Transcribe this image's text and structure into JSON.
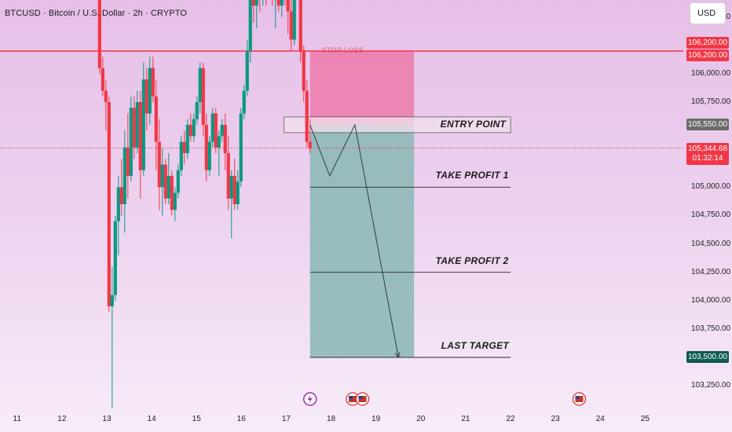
{
  "header": {
    "symbol": "BTCUSD · Bitcoin / U.S. Dollar · 2h · CRYPTO",
    "currency_button": "USD"
  },
  "price_axis": {
    "ticks": [
      "106,500.00",
      "106,000.00",
      "105,750.00",
      "105,000.00",
      "104,750.00",
      "104,500.00",
      "104,250.00",
      "104,000.00",
      "103,750.00",
      "103,250.00"
    ],
    "labels": {
      "stop_loss_price": "106,200.00",
      "entry_price": "105,550.00",
      "current_price": "105,344.68",
      "countdown": "01:32:14",
      "target_price": "103,500.00"
    }
  },
  "time_axis": {
    "ticks": [
      "11",
      "12",
      "13",
      "14",
      "15",
      "16",
      "17",
      "18",
      "19",
      "20",
      "21",
      "22",
      "23",
      "24",
      "25"
    ]
  },
  "annotations": {
    "stop_loss": "STOP LOSS",
    "entry_point": "ENTRY POINT",
    "take_profit_1": "TAKE PROFIT 1",
    "take_profit_2": "TAKE PROFIT 2",
    "last_target": "LAST TARGET"
  },
  "colors": {
    "up": "#089981",
    "down": "#f23645",
    "stop_zone": "#ec7aac",
    "profit_zone": "#8fb9b8",
    "accent_line": "#f23645",
    "target_badge": "#0b5b50",
    "entry_badge": "#6b6b6b"
  },
  "chart_data": {
    "type": "candlestick",
    "interval": "2h",
    "ylim": [
      103050,
      106650
    ],
    "x_range": [
      10.62,
      25.85
    ],
    "stop_loss": 106200,
    "entry": 105550,
    "take_profit_1": 105000,
    "take_profit_2": 104250,
    "last_target": 103500,
    "current_price": 105344.68,
    "position": {
      "x_start": 17.53,
      "x_end": 19.85
    },
    "projection": [
      [
        17.53,
        105550
      ],
      [
        17.97,
        105100
      ],
      [
        18.53,
        105550
      ],
      [
        19.5,
        103500
      ]
    ],
    "event_icons": [
      17.53,
      18.48,
      18.7,
      23.53
    ],
    "candles": [
      {
        "x": 12.84,
        "o": 106900,
        "h": 107000,
        "l": 106000,
        "c": 106050
      },
      {
        "x": 12.91,
        "o": 106050,
        "h": 106150,
        "l": 105800,
        "c": 105850
      },
      {
        "x": 12.98,
        "o": 105850,
        "h": 105950,
        "l": 105500,
        "c": 105750
      },
      {
        "x": 13.05,
        "o": 105750,
        "h": 105800,
        "l": 103900,
        "c": 103950
      },
      {
        "x": 13.12,
        "o": 103950,
        "h": 104300,
        "l": 103050,
        "c": 104050
      },
      {
        "x": 13.19,
        "o": 104050,
        "h": 104750,
        "l": 104000,
        "c": 104700
      },
      {
        "x": 13.26,
        "o": 104700,
        "h": 105100,
        "l": 104400,
        "c": 105000
      },
      {
        "x": 13.33,
        "o": 105000,
        "h": 105250,
        "l": 104750,
        "c": 104850
      },
      {
        "x": 13.4,
        "o": 104850,
        "h": 105500,
        "l": 104600,
        "c": 105350
      },
      {
        "x": 13.47,
        "o": 105350,
        "h": 105650,
        "l": 104900,
        "c": 105100
      },
      {
        "x": 13.54,
        "o": 105100,
        "h": 105800,
        "l": 105050,
        "c": 105700
      },
      {
        "x": 13.61,
        "o": 105700,
        "h": 105800,
        "l": 105250,
        "c": 105350
      },
      {
        "x": 13.68,
        "o": 105350,
        "h": 105850,
        "l": 105300,
        "c": 105750
      },
      {
        "x": 13.75,
        "o": 105750,
        "h": 105850,
        "l": 104900,
        "c": 105150
      },
      {
        "x": 13.82,
        "o": 105150,
        "h": 106100,
        "l": 105100,
        "c": 105950
      },
      {
        "x": 13.89,
        "o": 105950,
        "h": 106050,
        "l": 105500,
        "c": 105650
      },
      {
        "x": 13.96,
        "o": 105650,
        "h": 106150,
        "l": 105550,
        "c": 106050
      },
      {
        "x": 14.03,
        "o": 106050,
        "h": 106150,
        "l": 105750,
        "c": 105800
      },
      {
        "x": 14.1,
        "o": 105800,
        "h": 105950,
        "l": 105150,
        "c": 105400
      },
      {
        "x": 14.17,
        "o": 105400,
        "h": 105600,
        "l": 104800,
        "c": 105000
      },
      {
        "x": 14.24,
        "o": 105000,
        "h": 105350,
        "l": 104750,
        "c": 105200
      },
      {
        "x": 14.31,
        "o": 105200,
        "h": 105250,
        "l": 104850,
        "c": 104900
      },
      {
        "x": 14.38,
        "o": 104900,
        "h": 105300,
        "l": 104850,
        "c": 105100
      },
      {
        "x": 14.45,
        "o": 105100,
        "h": 105150,
        "l": 104750,
        "c": 104800
      },
      {
        "x": 14.52,
        "o": 104800,
        "h": 105000,
        "l": 104700,
        "c": 104950
      },
      {
        "x": 14.59,
        "o": 104950,
        "h": 105200,
        "l": 104900,
        "c": 105150
      },
      {
        "x": 14.66,
        "o": 105150,
        "h": 105450,
        "l": 105100,
        "c": 105400
      },
      {
        "x": 14.73,
        "o": 105400,
        "h": 105500,
        "l": 105200,
        "c": 105300
      },
      {
        "x": 14.8,
        "o": 105300,
        "h": 105600,
        "l": 105250,
        "c": 105550
      },
      {
        "x": 14.87,
        "o": 105550,
        "h": 105650,
        "l": 105400,
        "c": 105450
      },
      {
        "x": 14.94,
        "o": 105450,
        "h": 105650,
        "l": 105400,
        "c": 105600
      },
      {
        "x": 15.01,
        "o": 105600,
        "h": 105800,
        "l": 105550,
        "c": 105750
      },
      {
        "x": 15.08,
        "o": 105750,
        "h": 106100,
        "l": 105650,
        "c": 106050
      },
      {
        "x": 15.15,
        "o": 106050,
        "h": 106100,
        "l": 105450,
        "c": 105550
      },
      {
        "x": 15.22,
        "o": 105550,
        "h": 105650,
        "l": 105050,
        "c": 105150
      },
      {
        "x": 15.29,
        "o": 105150,
        "h": 105450,
        "l": 105100,
        "c": 105400
      },
      {
        "x": 15.36,
        "o": 105400,
        "h": 105700,
        "l": 105350,
        "c": 105650
      },
      {
        "x": 15.43,
        "o": 105650,
        "h": 105700,
        "l": 105300,
        "c": 105350
      },
      {
        "x": 15.5,
        "o": 105350,
        "h": 105500,
        "l": 105100,
        "c": 105450
      },
      {
        "x": 15.57,
        "o": 105450,
        "h": 105600,
        "l": 105400,
        "c": 105550
      },
      {
        "x": 15.64,
        "o": 105550,
        "h": 105650,
        "l": 105150,
        "c": 105300
      },
      {
        "x": 15.71,
        "o": 105300,
        "h": 105450,
        "l": 104800,
        "c": 104900
      },
      {
        "x": 15.78,
        "o": 104900,
        "h": 105150,
        "l": 104550,
        "c": 105100
      },
      {
        "x": 15.85,
        "o": 105100,
        "h": 105250,
        "l": 104800,
        "c": 104850
      },
      {
        "x": 15.92,
        "o": 104850,
        "h": 105150,
        "l": 104800,
        "c": 105050
      },
      {
        "x": 15.99,
        "o": 105050,
        "h": 105700,
        "l": 105000,
        "c": 105650
      },
      {
        "x": 16.06,
        "o": 105650,
        "h": 105900,
        "l": 105600,
        "c": 105850
      },
      {
        "x": 16.13,
        "o": 105850,
        "h": 106300,
        "l": 105800,
        "c": 106200
      },
      {
        "x": 16.2,
        "o": 106200,
        "h": 106800,
        "l": 106100,
        "c": 106700
      },
      {
        "x": 16.27,
        "o": 106700,
        "h": 106900,
        "l": 106450,
        "c": 106600
      },
      {
        "x": 16.34,
        "o": 106600,
        "h": 106900,
        "l": 106400,
        "c": 106850
      },
      {
        "x": 16.41,
        "o": 106850,
        "h": 106950,
        "l": 106550,
        "c": 106650
      },
      {
        "x": 16.48,
        "o": 106650,
        "h": 106900,
        "l": 106600,
        "c": 106800
      },
      {
        "x": 16.55,
        "o": 106800,
        "h": 106950,
        "l": 106600,
        "c": 106700
      },
      {
        "x": 16.62,
        "o": 106700,
        "h": 106950,
        "l": 106650,
        "c": 106850
      },
      {
        "x": 16.69,
        "o": 106850,
        "h": 106950,
        "l": 106600,
        "c": 106650
      },
      {
        "x": 16.76,
        "o": 106650,
        "h": 106900,
        "l": 106400,
        "c": 106750
      },
      {
        "x": 16.83,
        "o": 106750,
        "h": 106900,
        "l": 106550,
        "c": 106600
      },
      {
        "x": 16.9,
        "o": 106600,
        "h": 106900,
        "l": 106500,
        "c": 106800
      },
      {
        "x": 16.97,
        "o": 106800,
        "h": 106950,
        "l": 106600,
        "c": 106700
      },
      {
        "x": 17.04,
        "o": 106700,
        "h": 106900,
        "l": 106350,
        "c": 106550
      },
      {
        "x": 17.11,
        "o": 106550,
        "h": 106650,
        "l": 106200,
        "c": 106300
      },
      {
        "x": 17.18,
        "o": 106300,
        "h": 106850,
        "l": 106250,
        "c": 106750
      },
      {
        "x": 17.25,
        "o": 106750,
        "h": 106950,
        "l": 106700,
        "c": 106800
      },
      {
        "x": 17.32,
        "o": 106800,
        "h": 106950,
        "l": 106100,
        "c": 106200
      },
      {
        "x": 17.39,
        "o": 106200,
        "h": 106250,
        "l": 105750,
        "c": 105850
      },
      {
        "x": 17.46,
        "o": 105850,
        "h": 105950,
        "l": 105350,
        "c": 105400
      },
      {
        "x": 17.53,
        "o": 105400,
        "h": 105600,
        "l": 105300,
        "c": 105345
      }
    ]
  }
}
